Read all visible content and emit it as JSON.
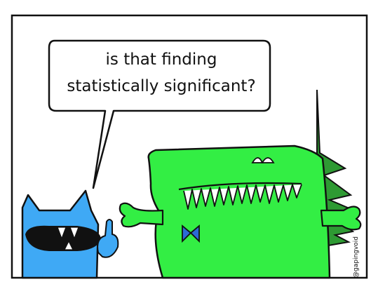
{
  "caption": {
    "line1": "is that finding",
    "line2": "statistically significant?"
  },
  "credit": "@gapingvoid",
  "colors": {
    "blue_monster": "#3fa9f5",
    "green_monster": "#33ee44",
    "dark_green_fin": "#2e9a33",
    "outline": "#111111",
    "background": "#ffffff"
  },
  "characters": [
    "blue-monster",
    "green-monster"
  ]
}
